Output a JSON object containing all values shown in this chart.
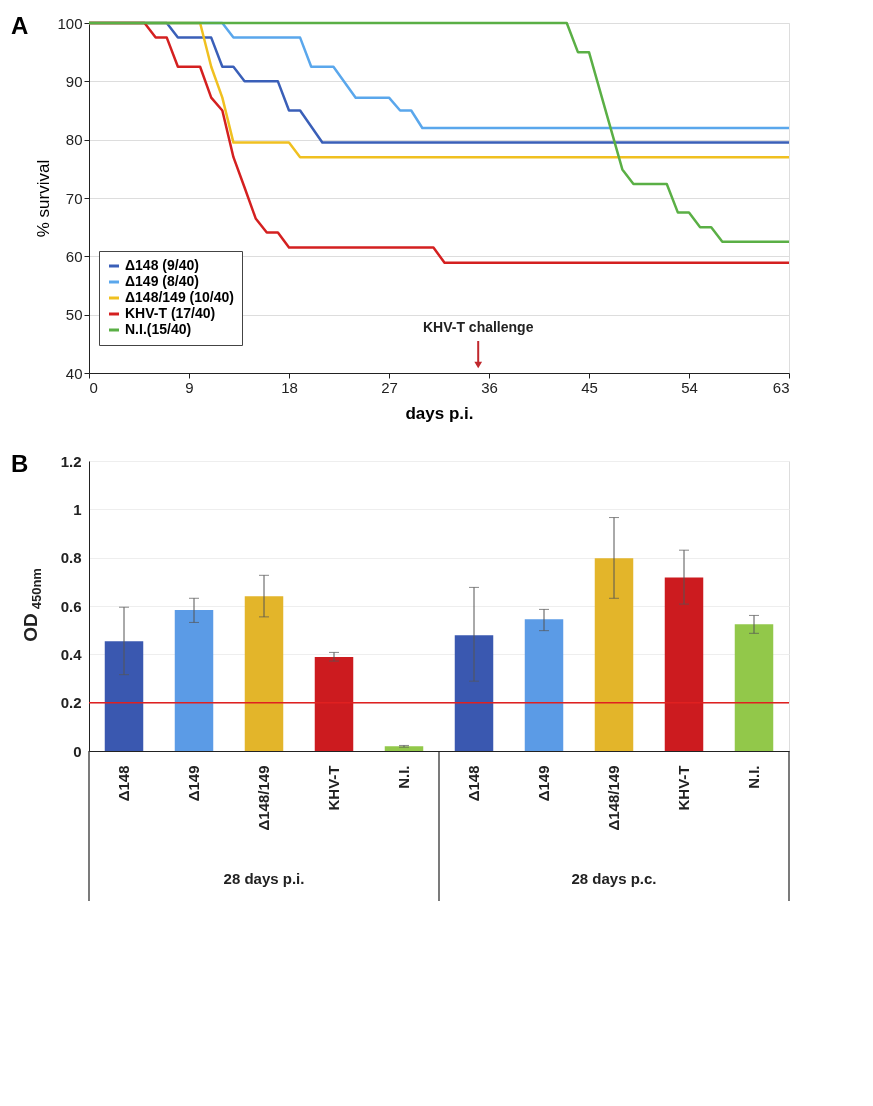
{
  "chart_data": [
    {
      "type": "line",
      "title": "A",
      "xlabel": "days p.i.",
      "ylabel": "% survival",
      "xlim": [
        0,
        63
      ],
      "xticks": [
        0,
        9,
        18,
        27,
        36,
        45,
        54,
        63
      ],
      "ylim": [
        40,
        100
      ],
      "yticks": [
        40,
        50,
        60,
        70,
        80,
        90,
        100
      ],
      "grid": "y",
      "legend": "bottom left",
      "line_style": "solid",
      "annotations": [
        "KHV-T challenge"
      ],
      "series": [
        {
          "name": "Δ148 (9/40)",
          "color": "#3a5fb8",
          "x": [
            0,
            7,
            8,
            11,
            12,
            13,
            14,
            17,
            18,
            19,
            21,
            63
          ],
          "values": [
            100,
            100,
            97.5,
            97.5,
            92.5,
            92.5,
            90,
            90,
            85,
            85,
            79.5,
            79.5
          ]
        },
        {
          "name": "Δ149 (8/40)",
          "color": "#5aa7ec",
          "x": [
            0,
            12,
            13,
            19,
            20,
            22,
            24,
            27,
            28,
            29,
            30,
            63
          ],
          "values": [
            100,
            100,
            97.5,
            97.5,
            92.5,
            92.5,
            87.2,
            87.2,
            85,
            85,
            82,
            82
          ]
        },
        {
          "name": "Δ148/149 (10/40)",
          "color": "#f0c020",
          "x": [
            0,
            10,
            11,
            12,
            13,
            18,
            19,
            63
          ],
          "values": [
            100,
            100,
            92.5,
            87.2,
            79.5,
            79.5,
            77,
            77
          ]
        },
        {
          "name": "KHV-T (17/40)",
          "color": "#d42020",
          "x": [
            0,
            5,
            6,
            7,
            8,
            10,
            11,
            12,
            13,
            14,
            15,
            16,
            17,
            18,
            31,
            32,
            63
          ],
          "values": [
            100,
            100,
            97.5,
            97.5,
            92.5,
            92.5,
            87.2,
            85,
            77,
            71.8,
            66.5,
            64.1,
            64.1,
            61.5,
            61.5,
            58.9,
            58.9
          ]
        },
        {
          "name": "N.I.(15/40)",
          "color": "#5aaf45",
          "x": [
            0,
            43,
            44,
            45,
            48,
            49,
            52,
            53,
            54,
            55,
            56,
            57,
            63
          ],
          "values": [
            100,
            100,
            95,
            95,
            74.9,
            72.4,
            72.4,
            67.5,
            67.5,
            65,
            65,
            62.5,
            62.5
          ]
        }
      ]
    },
    {
      "type": "bar",
      "title": "B",
      "ylabel": "OD$_{450nm}$",
      "ylim": [
        0,
        1.2
      ],
      "yticks": [
        0,
        0.2,
        0.4,
        0.6,
        0.8,
        1,
        1.2
      ],
      "grid": "y",
      "categories": [
        "Δ148",
        "Δ149",
        "Δ148/149",
        "KHV-T",
        "N.I.",
        "Δ148",
        "Δ149",
        "Δ148/149",
        "KHV-T",
        "N.I."
      ],
      "values": [
        0.454,
        0.583,
        0.64,
        0.389,
        0.02,
        0.479,
        0.545,
        0.798,
        0.718,
        0.525
      ],
      "colors": [
        "#3a58b0",
        "#5b9be6",
        "#e3b52a",
        "#cc1b1f",
        "#92c84a",
        "#3a58b0",
        "#5b9be6",
        "#e3b52a",
        "#cc1b1f",
        "#92c84a"
      ],
      "errors": [
        [
          0.316,
          0.595
        ],
        [
          0.532,
          0.632
        ],
        [
          0.555,
          0.727
        ],
        [
          0.372,
          0.408
        ],
        [
          0.016,
          0.023
        ],
        [
          0.289,
          0.677
        ],
        [
          0.498,
          0.586
        ],
        [
          0.632,
          0.966
        ],
        [
          0.608,
          0.831
        ],
        [
          0.487,
          0.561
        ]
      ],
      "ref_lines": [
        {
          "axis": "y",
          "value": 0.2,
          "color": "#e02020"
        }
      ],
      "annotations": [
        "28 days p.i.",
        "28 days p.c."
      ]
    }
  ]
}
